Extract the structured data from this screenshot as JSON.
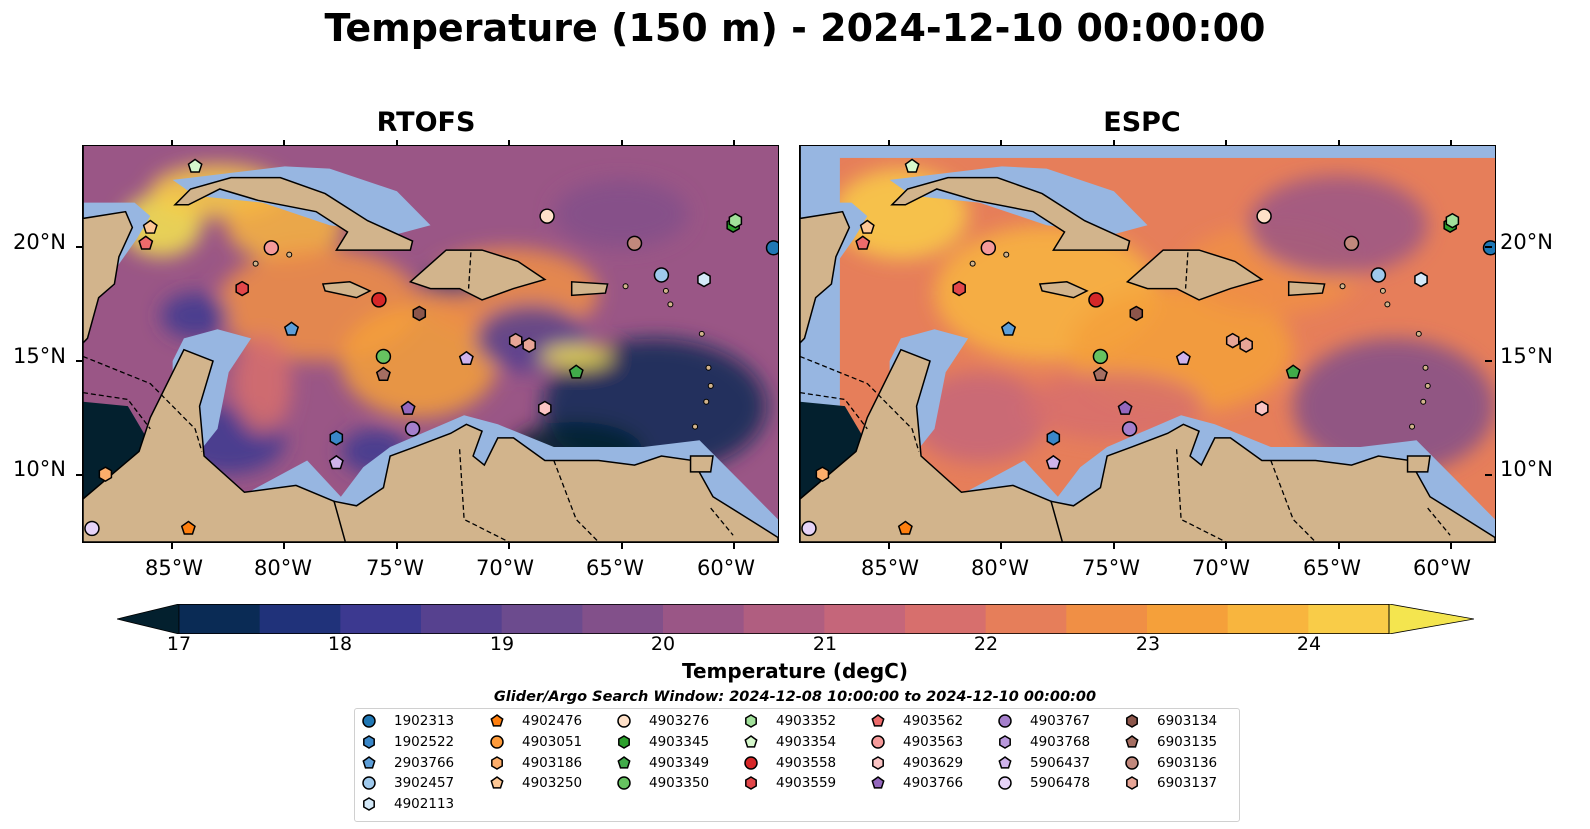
{
  "title": "Temperature (150 m) - 2024-12-10 00:00:00",
  "panels": [
    {
      "title": "RTOFS",
      "style": "rtofs"
    },
    {
      "title": "ESPC",
      "style": "espc"
    }
  ],
  "latitude_labels": [
    "20°N",
    "15°N",
    "10°N"
  ],
  "longitude_labels": [
    "85°W",
    "80°W",
    "75°W",
    "70°W",
    "65°W",
    "60°W"
  ],
  "map_extent": {
    "lon_min": -89,
    "lon_max": -58,
    "lat_min": 7,
    "lat_max": 24.5
  },
  "colorbar": {
    "label": "Temperature (degC)",
    "ticks": [
      "17",
      "18",
      "19",
      "20",
      "21",
      "22",
      "23",
      "24"
    ],
    "range": [
      17,
      24.5
    ],
    "extend": "both",
    "colors": [
      "#03202e",
      "#0a2b55",
      "#20327a",
      "#3c3990",
      "#56418f",
      "#6c4b8e",
      "#82508a",
      "#9a5686",
      "#b05e80",
      "#c5667a",
      "#d76f6d",
      "#e67e5a",
      "#f08f45",
      "#f5a03a",
      "#f8b53e",
      "#f9cc48",
      "#f4e54f"
    ]
  },
  "search_window": "Glider/Argo Search Window: 2024-12-08 10:00:00 to 2024-12-10 00:00:00",
  "colors": {
    "land": "#d2b48c",
    "shelf": "#97b6e1",
    "coast": "#000000"
  },
  "legend": [
    {
      "id": "1902313",
      "color": "#1f77b4",
      "marker": "circle"
    },
    {
      "id": "1902522",
      "color": "#3a87c8",
      "marker": "hexagon"
    },
    {
      "id": "2903766",
      "color": "#5d9ed8",
      "marker": "pentagon"
    },
    {
      "id": "3902457",
      "color": "#9fc9ec",
      "marker": "circle"
    },
    {
      "id": "4902113",
      "color": "#d4e9f8",
      "marker": "hexagon"
    },
    {
      "id": "4902476",
      "color": "#ff7f0e",
      "marker": "pentagon"
    },
    {
      "id": "4903051",
      "color": "#fd9a3a",
      "marker": "circle"
    },
    {
      "id": "4903186",
      "color": "#fdae6b",
      "marker": "hexagon"
    },
    {
      "id": "4903250",
      "color": "#fdc795",
      "marker": "pentagon"
    },
    {
      "id": "4903276",
      "color": "#fee0c8",
      "marker": "circle"
    },
    {
      "id": "4903345",
      "color": "#2ca02c",
      "marker": "hexagon"
    },
    {
      "id": "4903349",
      "color": "#41ab4a",
      "marker": "pentagon"
    },
    {
      "id": "4903350",
      "color": "#66c260",
      "marker": "circle"
    },
    {
      "id": "4903352",
      "color": "#a1e09a",
      "marker": "hexagon"
    },
    {
      "id": "4903354",
      "color": "#d6f8cc",
      "marker": "pentagon"
    },
    {
      "id": "4903558",
      "color": "#d62728",
      "marker": "circle"
    },
    {
      "id": "4903559",
      "color": "#e2474a",
      "marker": "hexagon"
    },
    {
      "id": "4903562",
      "color": "#ed6b6b",
      "marker": "pentagon"
    },
    {
      "id": "4903563",
      "color": "#f59a9a",
      "marker": "circle"
    },
    {
      "id": "4903629",
      "color": "#fbc4c4",
      "marker": "hexagon"
    },
    {
      "id": "4903766",
      "color": "#9467bd",
      "marker": "pentagon"
    },
    {
      "id": "4903767",
      "color": "#a57fcc",
      "marker": "circle"
    },
    {
      "id": "4903768",
      "color": "#b998dc",
      "marker": "hexagon"
    },
    {
      "id": "5906437",
      "color": "#cfb3ec",
      "marker": "pentagon"
    },
    {
      "id": "5906478",
      "color": "#e6d3f8",
      "marker": "circle"
    },
    {
      "id": "6903134",
      "color": "#8c564b",
      "marker": "hexagon"
    },
    {
      "id": "6903135",
      "color": "#a56e62",
      "marker": "pentagon"
    },
    {
      "id": "6903136",
      "color": "#c1887c",
      "marker": "circle"
    },
    {
      "id": "6903137",
      "color": "#e7a596",
      "marker": "hexagon"
    }
  ],
  "observations": [
    {
      "id": "1902313",
      "lon": -58.2,
      "lat": 20.0
    },
    {
      "id": "4903345",
      "lon": -60.0,
      "lat": 21.0
    },
    {
      "id": "4903352",
      "lon": -59.9,
      "lat": 21.2
    },
    {
      "id": "3902457",
      "lon": -63.2,
      "lat": 18.8
    },
    {
      "id": "4902113",
      "lon": -61.3,
      "lat": 18.6
    },
    {
      "id": "4903276",
      "lon": -68.3,
      "lat": 21.4
    },
    {
      "id": "6903136",
      "lon": -64.4,
      "lat": 20.2
    },
    {
      "id": "4903563",
      "lon": -80.6,
      "lat": 20.0
    },
    {
      "id": "4903354",
      "lon": -84.0,
      "lat": 23.6
    },
    {
      "id": "4903250",
      "lon": -86.0,
      "lat": 20.9
    },
    {
      "id": "4903562",
      "lon": -86.2,
      "lat": 20.2
    },
    {
      "id": "4903559",
      "lon": -81.9,
      "lat": 18.2
    },
    {
      "id": "4903558",
      "lon": -75.8,
      "lat": 17.7
    },
    {
      "id": "6903134",
      "lon": -74.0,
      "lat": 17.1
    },
    {
      "id": "2903766",
      "lon": -79.7,
      "lat": 16.4
    },
    {
      "id": "4903350",
      "lon": -75.6,
      "lat": 15.2
    },
    {
      "id": "6903135",
      "lon": -75.6,
      "lat": 14.4
    },
    {
      "id": "5906437",
      "lon": -71.9,
      "lat": 15.1
    },
    {
      "id": "6903137",
      "lon": -69.7,
      "lat": 15.9
    },
    {
      "id": "6903137",
      "lon": -69.1,
      "lat": 15.7
    },
    {
      "id": "4903349",
      "lon": -67.0,
      "lat": 14.5
    },
    {
      "id": "4903629",
      "lon": -68.4,
      "lat": 12.9
    },
    {
      "id": "4903766",
      "lon": -74.5,
      "lat": 12.9
    },
    {
      "id": "4903767",
      "lon": -74.3,
      "lat": 12.0
    },
    {
      "id": "1902522",
      "lon": -77.7,
      "lat": 11.6
    },
    {
      "id": "5906437",
      "lon": -77.7,
      "lat": 10.5
    },
    {
      "id": "4903186",
      "lon": -88.0,
      "lat": 10.0
    },
    {
      "id": "5906478",
      "lon": -88.6,
      "lat": 7.6
    },
    {
      "id": "4902476",
      "lon": -84.3,
      "lat": 7.6
    }
  ]
}
